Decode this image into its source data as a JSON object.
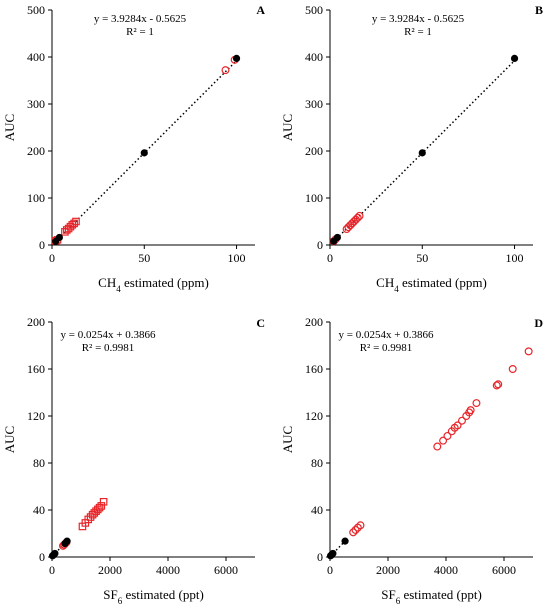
{
  "chart_data": [
    {
      "panel": "A",
      "type": "scatter",
      "xlabel": "CH",
      "xlabel_sub": "4",
      "xlabel_rest": " estimated (ppm)",
      "ylabel": "AUC",
      "xlim": [
        0,
        110
      ],
      "ylim": [
        0,
        500
      ],
      "xticks": [
        0,
        50,
        100
      ],
      "yticks": [
        0,
        100,
        200,
        300,
        400,
        500
      ],
      "equation": "y = 3.9284x - 0.5625",
      "r2": "R² = 1",
      "trendline": {
        "slope": 3.9284,
        "intercept": -0.5625,
        "x_range": [
          2,
          100
        ]
      },
      "series": [
        {
          "marker": "filled-circle",
          "color": "#000000",
          "x": [
            2,
            4,
            50,
            100
          ],
          "y": [
            8,
            16,
            196,
            397
          ]
        },
        {
          "marker": "open-circle",
          "color": "#e8262a",
          "x": [
            94,
            99
          ],
          "y": [
            372,
            394
          ]
        },
        {
          "marker": "open-square",
          "color": "#e8262a",
          "x": [
            2,
            3,
            7,
            8,
            9,
            10,
            11,
            12,
            13
          ],
          "y": [
            9,
            11,
            28,
            32,
            35,
            39,
            43,
            46,
            50
          ]
        }
      ]
    },
    {
      "panel": "B",
      "type": "scatter",
      "xlabel": "CH",
      "xlabel_sub": "4",
      "xlabel_rest": " estimated (ppm)",
      "ylabel": "AUC",
      "xlim": [
        0,
        110
      ],
      "ylim": [
        0,
        500
      ],
      "xticks": [
        0,
        50,
        100
      ],
      "yticks": [
        0,
        100,
        200,
        300,
        400,
        500
      ],
      "equation": "y = 3.9284x - 0.5625",
      "r2": "R² = 1",
      "trendline": {
        "slope": 3.9284,
        "intercept": -0.5625,
        "x_range": [
          2,
          100
        ]
      },
      "series": [
        {
          "marker": "filled-circle",
          "color": "#000000",
          "x": [
            2,
            4,
            50,
            100
          ],
          "y": [
            8,
            16,
            196,
            397
          ]
        },
        {
          "marker": "open-circle",
          "color": "#e8262a",
          "x": [
            2,
            3,
            9,
            10,
            11,
            12,
            13,
            14,
            15,
            16
          ],
          "y": [
            8,
            12,
            34,
            38,
            42,
            46,
            50,
            54,
            58,
            62
          ]
        }
      ]
    },
    {
      "panel": "C",
      "type": "scatter",
      "xlabel": "SF",
      "xlabel_sub": "6",
      "xlabel_rest": " estimated (ppt)",
      "ylabel": "AUC",
      "xlim": [
        0,
        7000
      ],
      "ylim": [
        0,
        200
      ],
      "xticks": [
        0,
        2000,
        4000,
        6000
      ],
      "yticks": [
        0,
        40,
        80,
        120,
        160,
        200
      ],
      "equation": "y = 0.0254x + 0.3866",
      "r2": "R² = 0.9981",
      "trendline": {
        "slope": 0.0254,
        "intercept": 0.3866,
        "x_range": [
          20,
          520
        ]
      },
      "series": [
        {
          "marker": "filled-circle",
          "color": "#000000",
          "x": [
            20,
            60,
            100,
            450,
            520
          ],
          "y": [
            1,
            2,
            3,
            11.5,
            13.5
          ]
        },
        {
          "marker": "open-circle",
          "color": "#e8262a",
          "x": [
            380,
            420,
            460,
            500
          ],
          "y": [
            9.5,
            10.5,
            11.5,
            12.5
          ]
        },
        {
          "marker": "open-square",
          "color": "#e8262a",
          "x": [
            1050,
            1150,
            1250,
            1330,
            1400,
            1460,
            1520,
            1580,
            1640,
            1700,
            1780
          ],
          "y": [
            26,
            29,
            32,
            34,
            36,
            37.5,
            39,
            40.5,
            42,
            43.5,
            47
          ]
        }
      ]
    },
    {
      "panel": "D",
      "type": "scatter",
      "xlabel": "SF",
      "xlabel_sub": "6",
      "xlabel_rest": " estimated (ppt)",
      "ylabel": "AUC",
      "xlim": [
        0,
        7000
      ],
      "ylim": [
        0,
        200
      ],
      "xticks": [
        0,
        2000,
        4000,
        6000
      ],
      "yticks": [
        0,
        40,
        80,
        120,
        160,
        200
      ],
      "equation": "y = 0.0254x + 0.3866",
      "r2": "R² = 0.9981",
      "trendline": {
        "slope": 0.0254,
        "intercept": 0.3866,
        "x_range": [
          20,
          520
        ]
      },
      "series": [
        {
          "marker": "filled-circle",
          "color": "#000000",
          "x": [
            20,
            60,
            100,
            520
          ],
          "y": [
            1,
            2,
            3,
            13.5
          ]
        },
        {
          "marker": "open-circle",
          "color": "#e8262a",
          "x": [
            800,
            880,
            960,
            1050,
            3700,
            3900,
            4050,
            4200,
            4300,
            4400,
            4550,
            4700,
            4800,
            4850,
            5050,
            5750,
            5800,
            6300,
            6850
          ],
          "y": [
            21,
            23,
            25,
            27,
            94,
            99,
            103,
            107,
            110,
            112,
            116,
            120,
            123,
            125,
            131,
            146,
            147,
            160,
            175
          ]
        }
      ]
    }
  ]
}
